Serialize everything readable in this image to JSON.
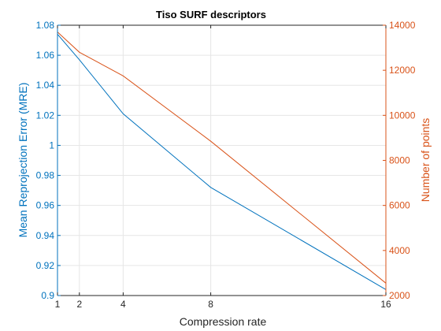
{
  "chart_data": {
    "type": "line",
    "title": "Tiso SURF descriptors",
    "xlabel": "Compression rate",
    "ylabel_left": "Mean Reprojection Error (MRE)",
    "ylabel_right": "Number of points",
    "grid": true,
    "x": [
      1,
      2,
      4,
      8,
      16
    ],
    "xlim": [
      1,
      16
    ],
    "xticks": [
      1,
      2,
      4,
      8,
      16
    ],
    "ylim_left": [
      0.9,
      1.08
    ],
    "yticks_left": [
      "0.9",
      "0.92",
      "0.94",
      "0.96",
      "0.98",
      "1",
      "1.02",
      "1.04",
      "1.06",
      "1.08"
    ],
    "ylim_right": [
      2000,
      14000
    ],
    "yticks_right": [
      "2000",
      "4000",
      "6000",
      "8000",
      "10000",
      "12000",
      "14000"
    ],
    "series": [
      {
        "axis": "left",
        "color": "#0072BD",
        "values": [
          1.074,
          1.057,
          1.021,
          0.972,
          0.904
        ]
      },
      {
        "axis": "right",
        "color": "#D95319",
        "values": [
          13700,
          12800,
          11750,
          8850,
          2550
        ]
      }
    ],
    "colors": {
      "left_axis": "#0072BD",
      "right_axis": "#D95319",
      "grid": "#e6e6e6",
      "box": "#262626"
    }
  }
}
